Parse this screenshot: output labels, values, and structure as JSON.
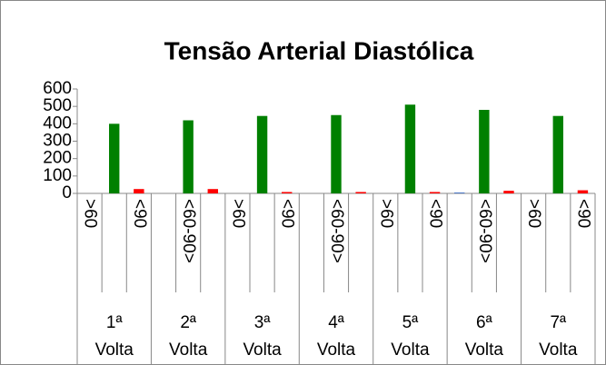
{
  "chart_data": {
    "type": "bar",
    "title": "Tensão Arterial Diastólica",
    "groups": [
      "1ª Volta",
      "2ª Volta",
      "3ª Volta",
      "4ª Volta",
      "5ª Volta",
      "6ª Volta",
      "7ª Volta"
    ],
    "categories": [
      ">60",
      null,
      "<90",
      null,
      "<60-90>",
      null,
      ">60",
      null,
      "<90",
      null,
      "<60-90>",
      null,
      ">60",
      null,
      "<90",
      null,
      "<60-90>",
      null,
      ">60",
      null,
      "<90"
    ],
    "values": [
      0,
      400,
      25,
      0,
      420,
      25,
      0,
      445,
      8,
      0,
      450,
      8,
      0,
      510,
      8,
      5,
      480,
      15,
      0,
      445,
      18
    ],
    "colors": [
      "#4472c4",
      "#008000",
      "#ff0000"
    ],
    "ylim": [
      0,
      600
    ],
    "yticks": [
      0,
      100,
      200,
      300,
      400,
      500,
      600
    ]
  }
}
